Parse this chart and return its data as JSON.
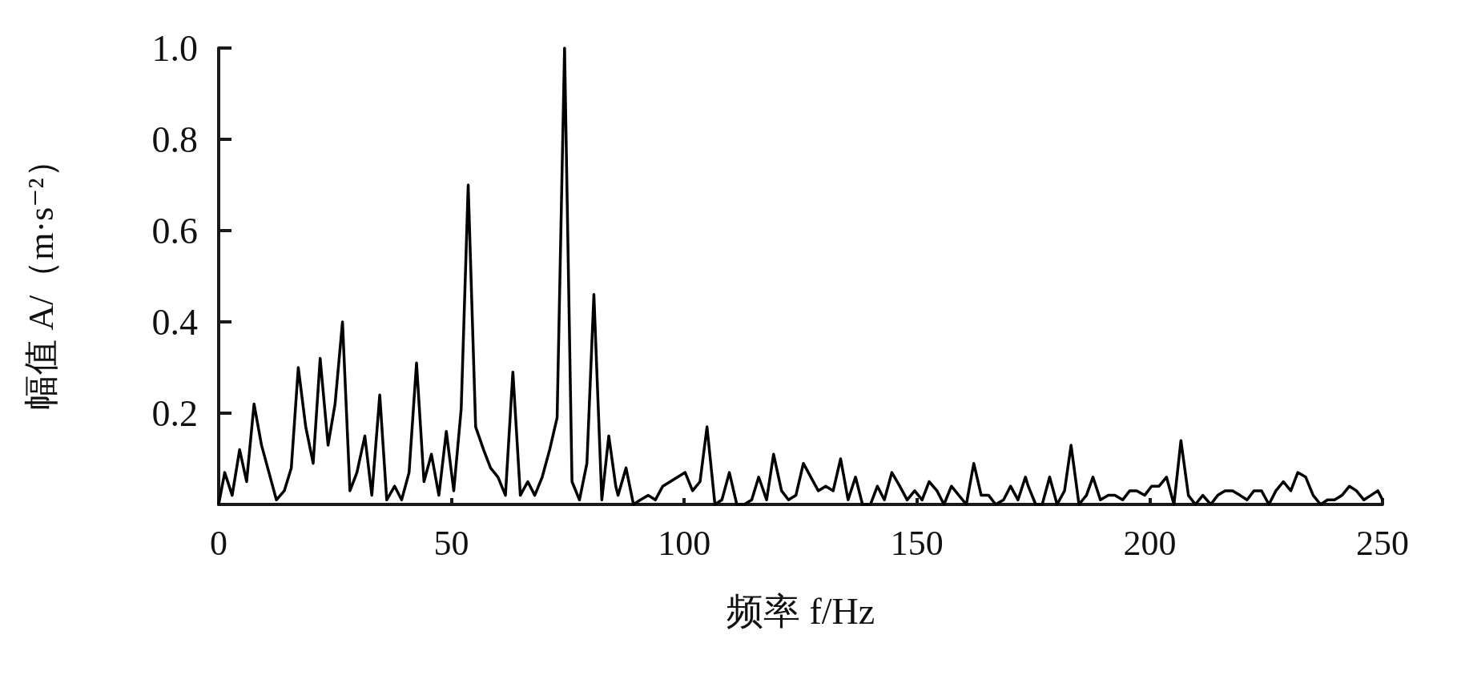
{
  "chart_data": {
    "type": "line",
    "xlabel": "频率 f/Hz",
    "ylabel": "幅值 A/（m·s⁻²）",
    "xlim": [
      0,
      250
    ],
    "xticks": [
      0,
      50,
      100,
      150,
      200,
      250
    ],
    "ylim": [
      0,
      1
    ],
    "yticks": [
      {
        "value": 0,
        "label": null
      },
      0.2,
      0.4,
      0.6,
      0.8,
      {
        "value": 1,
        "label": "1.0"
      }
    ],
    "marker": "none",
    "line_style": "solid",
    "series": [
      {
        "color": "#000000",
        "x": [
          0,
          1.3,
          2.9,
          4.5,
          6.0,
          7.6,
          9.2,
          10.8,
          12.4,
          14.1,
          15.6,
          17.1,
          18.7,
          20.3,
          21.8,
          23.5,
          25.0,
          26.6,
          28.2,
          29.7,
          31.4,
          32.9,
          34.6,
          36.1,
          37.8,
          39.3,
          40.9,
          42.5,
          44.1,
          45.7,
          47.3,
          48.9,
          50.5,
          52.1,
          53.6,
          55.2,
          56.9,
          58.4,
          60.0,
          61.6,
          63.2,
          64.8,
          66.4,
          67.9,
          69.5,
          71.1,
          72.7,
          74.3,
          75.9,
          77.5,
          79.1,
          80.6,
          82.3,
          83.8,
          85.3,
          85.8,
          87.5,
          89.1,
          90.6,
          92.3,
          93.8,
          95.4,
          97.0,
          98.6,
          100.2,
          101.8,
          103.4,
          104.9,
          106.6,
          108.1,
          109.7,
          111.3,
          112.9,
          114.5,
          116.0,
          117.7,
          119.2,
          120.9,
          122.4,
          124.0,
          125.6,
          127.2,
          128.8,
          130.4,
          132.0,
          133.6,
          135.2,
          136.8,
          138.3,
          140.0,
          141.5,
          143.0,
          144.6,
          146.3,
          147.9,
          149.5,
          151.1,
          152.6,
          154.3,
          155.8,
          157.4,
          159.0,
          160.6,
          162.2,
          163.8,
          165.4,
          166.9,
          168.6,
          170.1,
          171.7,
          173.3,
          173.9,
          175.5,
          176.9,
          178.5,
          180.1,
          181.7,
          183.1,
          184.8,
          186.4,
          187.8,
          189.4,
          191.1,
          192.5,
          194.2,
          195.7,
          197.2,
          198.9,
          200.4,
          202.0,
          203.6,
          205.2,
          206.7,
          208.3,
          209.8,
          211.4,
          213.1,
          214.6,
          216.2,
          217.8,
          219.4,
          220.9,
          222.4,
          224.0,
          225.6,
          227.1,
          228.7,
          230.3,
          231.8,
          233.5,
          235.1,
          236.7,
          238.2,
          239.7,
          241.3,
          242.9,
          244.4,
          246.0,
          247.5,
          249.0,
          250
        ],
        "values": [
          0,
          0.07,
          0.02,
          0.12,
          0.05,
          0.22,
          0.13,
          0.07,
          0.01,
          0.03,
          0.08,
          0.3,
          0.17,
          0.09,
          0.32,
          0.13,
          0.22,
          0.4,
          0.03,
          0.07,
          0.15,
          0.02,
          0.24,
          0.01,
          0.04,
          0.01,
          0.07,
          0.31,
          0.05,
          0.11,
          0.02,
          0.16,
          0.03,
          0.21,
          0.7,
          0.17,
          0.12,
          0.08,
          0.06,
          0.02,
          0.29,
          0.02,
          0.05,
          0.02,
          0.06,
          0.12,
          0.19,
          1.0,
          0.05,
          0.01,
          0.09,
          0.46,
          0.01,
          0.15,
          0.04,
          0.02,
          0.08,
          0.0,
          0.01,
          0.02,
          0.01,
          0.04,
          0.05,
          0.06,
          0.07,
          0.03,
          0.05,
          0.17,
          0.0,
          0.01,
          0.07,
          0.0,
          0.0,
          0.01,
          0.06,
          0.01,
          0.11,
          0.03,
          0.01,
          0.02,
          0.09,
          0.06,
          0.03,
          0.04,
          0.03,
          0.1,
          0.01,
          0.06,
          0.0,
          0.0,
          0.04,
          0.01,
          0.07,
          0.04,
          0.01,
          0.03,
          0.01,
          0.05,
          0.03,
          0.0,
          0.04,
          0.02,
          0.0,
          0.09,
          0.02,
          0.02,
          0.0,
          0.01,
          0.04,
          0.01,
          0.06,
          0.04,
          0.0,
          0.0,
          0.06,
          0.0,
          0.03,
          0.13,
          0.0,
          0.02,
          0.06,
          0.01,
          0.02,
          0.02,
          0.01,
          0.03,
          0.03,
          0.02,
          0.04,
          0.04,
          0.06,
          0.0,
          0.14,
          0.02,
          0.0,
          0.02,
          0.0,
          0.02,
          0.03,
          0.03,
          0.02,
          0.01,
          0.03,
          0.03,
          0.0,
          0.03,
          0.05,
          0.03,
          0.07,
          0.06,
          0.02,
          0.0,
          0.01,
          0.01,
          0.02,
          0.04,
          0.03,
          0.01,
          0.02,
          0.03,
          0.01
        ]
      }
    ]
  }
}
